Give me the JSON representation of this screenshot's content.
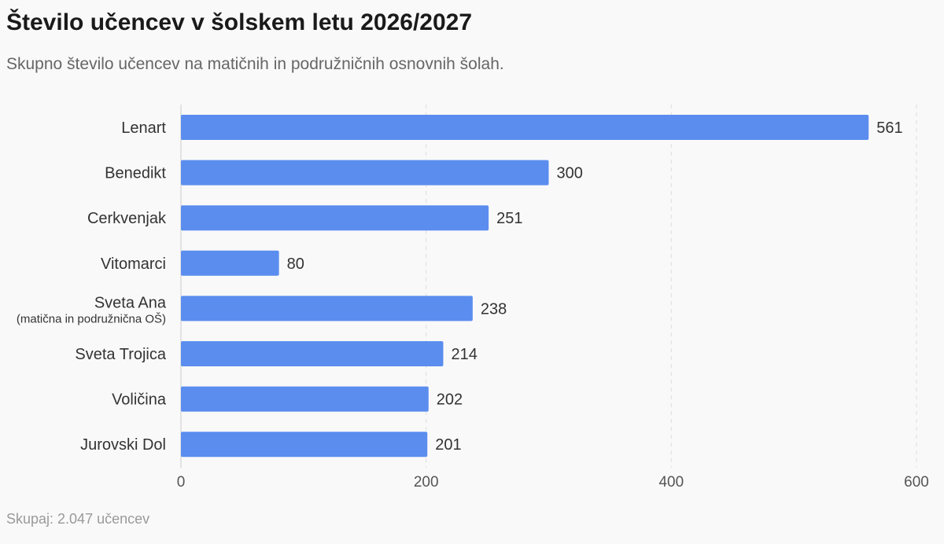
{
  "header": {
    "title": "Število učencev v šolskem letu 2026/2027",
    "subtitle": "Skupno število učencev na matičnih in podružničnih osnovnih šolah."
  },
  "footer": {
    "total": "Skupaj: 2.047 učencev"
  },
  "chart_data": {
    "type": "bar",
    "orientation": "horizontal",
    "categories": [
      {
        "label": "Lenart",
        "sublabel": ""
      },
      {
        "label": "Benedikt",
        "sublabel": ""
      },
      {
        "label": "Cerkvenjak",
        "sublabel": ""
      },
      {
        "label": "Vitomarci",
        "sublabel": ""
      },
      {
        "label": "Sveta Ana",
        "sublabel": "(matična in podružnična OŠ)"
      },
      {
        "label": "Sveta Trojica",
        "sublabel": ""
      },
      {
        "label": "Voličina",
        "sublabel": ""
      },
      {
        "label": "Jurovski Dol",
        "sublabel": ""
      }
    ],
    "values": [
      561,
      300,
      251,
      80,
      238,
      214,
      202,
      201
    ],
    "xlim": [
      0,
      600
    ],
    "xticks": [
      0,
      200,
      400,
      600
    ],
    "grid": true,
    "bar_color": "#5b8def",
    "grid_color": "#dddddd",
    "axis_color": "#cccccc"
  }
}
